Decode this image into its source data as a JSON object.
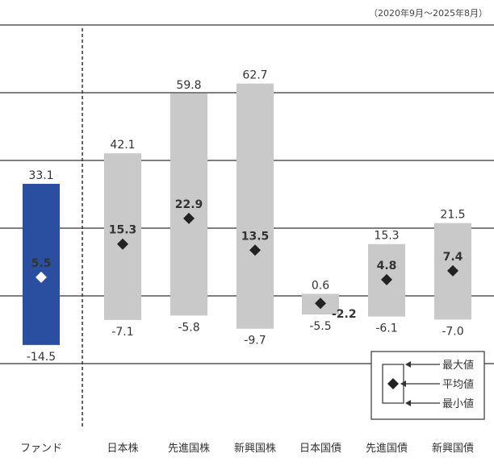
{
  "period": "（2020年9月～2025年8月）",
  "chart_data": {
    "type": "bar",
    "categories": [
      "ファンド",
      "日本株",
      "先進国株",
      "新興国株",
      "日本国債",
      "先進国債",
      "新興国債"
    ],
    "max": [
      33.1,
      42.1,
      59.8,
      62.7,
      0.6,
      15.3,
      21.5
    ],
    "avg": [
      5.5,
      15.3,
      22.9,
      13.5,
      -2.2,
      4.8,
      7.4
    ],
    "min": [
      -14.5,
      -7.1,
      -5.8,
      -9.7,
      -5.5,
      -6.1,
      -7.0
    ],
    "max_labels": [
      "33.1",
      "42.1",
      "59.8",
      "62.7",
      "0.6",
      "15.3",
      "21.5"
    ],
    "avg_labels": [
      "5.5",
      "15.3",
      "22.9",
      "13.5",
      "-2.2",
      "4.8",
      "7.4"
    ],
    "min_labels": [
      "-14.5",
      "-7.1",
      "-5.8",
      "-9.7",
      "-5.5",
      "-6.1",
      "-7.0"
    ],
    "ylim": [
      -20,
      100
    ],
    "gridlines": [
      -20,
      0,
      20,
      40,
      60,
      80,
      100
    ],
    "legend": {
      "position": "bottom-right",
      "labels": [
        "最大値",
        "平均値",
        "最小値"
      ]
    },
    "colors": {
      "fund_bar": "#2b4fa0",
      "other_bar": "#c9c9c9",
      "marker": "#222222",
      "fund_marker": "#ffffff",
      "grid": "#333333"
    }
  }
}
